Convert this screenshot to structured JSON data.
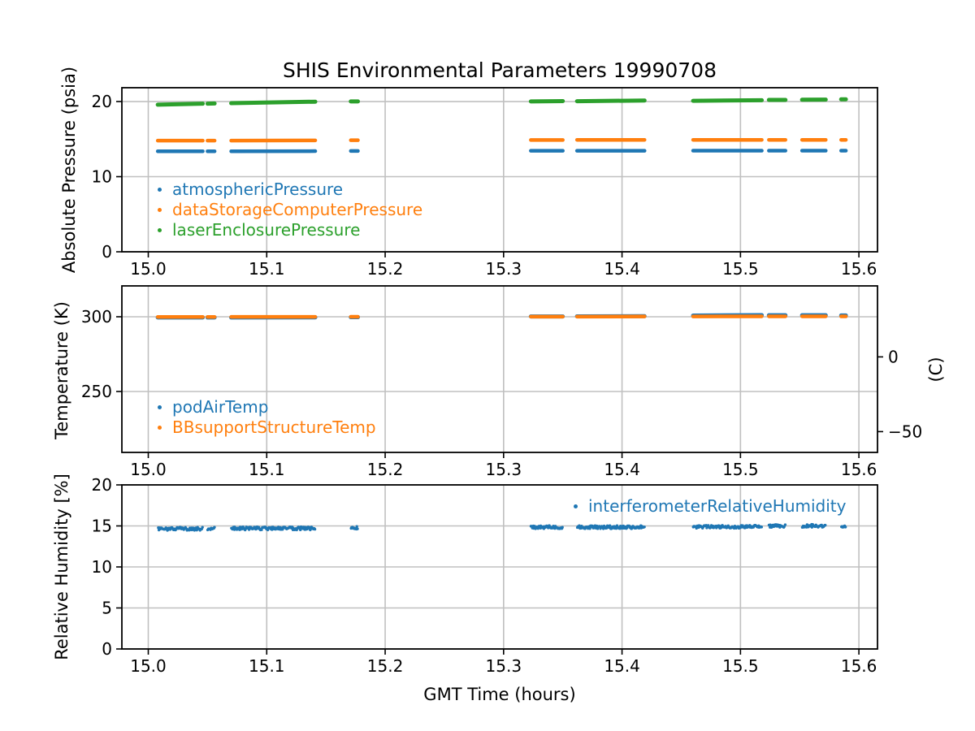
{
  "title": "SHIS Environmental Parameters 19990708",
  "xlabel": "GMT Time (hours)",
  "palette": {
    "blue": "#1f77b4",
    "orange": "#ff7f0e",
    "green": "#2ca02c",
    "grid": "#c0c0c0",
    "spine": "#000000"
  },
  "chart_data": [
    {
      "id": "pressure-plot",
      "type": "scatter",
      "ylabel": "Absolute Pressure (psia)",
      "xlim": [
        14.9777,
        15.6157
      ],
      "ylim": [
        0,
        21.84
      ],
      "xticks": [
        15.0,
        15.1,
        15.2,
        15.3,
        15.4,
        15.5,
        15.6
      ],
      "yticks": [
        0,
        10,
        20
      ],
      "grid": true,
      "legend_position": "lower left",
      "series": [
        {
          "name": "atmosphericPressure",
          "color": "#1f77b4",
          "style": "line",
          "width": 4.5,
          "segments": [
            [
              15.008,
              15.046,
              13.38,
              13.38
            ],
            [
              15.05,
              15.056,
              13.38,
              13.38
            ],
            [
              15.07,
              15.141,
              13.38,
              13.4
            ],
            [
              15.171,
              15.177,
              13.42,
              13.42
            ],
            [
              15.323,
              15.35,
              13.45,
              13.45
            ],
            [
              15.362,
              15.419,
              13.45,
              13.45
            ],
            [
              15.46,
              15.518,
              13.46,
              13.46
            ],
            [
              15.524,
              15.538,
              13.46,
              13.46
            ],
            [
              15.552,
              15.572,
              13.46,
              13.46
            ],
            [
              15.585,
              15.589,
              13.46,
              13.46
            ]
          ]
        },
        {
          "name": "dataStorageComputerPressure",
          "color": "#ff7f0e",
          "style": "line",
          "width": 4.5,
          "segments": [
            [
              15.008,
              15.046,
              14.8,
              14.8
            ],
            [
              15.05,
              15.056,
              14.8,
              14.8
            ],
            [
              15.07,
              15.141,
              14.8,
              14.83
            ],
            [
              15.171,
              15.177,
              14.85,
              14.85
            ],
            [
              15.323,
              15.35,
              14.88,
              14.88
            ],
            [
              15.362,
              15.419,
              14.9,
              14.9
            ],
            [
              15.46,
              15.518,
              14.9,
              14.9
            ],
            [
              15.524,
              15.538,
              14.9,
              14.9
            ],
            [
              15.552,
              15.572,
              14.9,
              14.9
            ],
            [
              15.585,
              15.589,
              14.9,
              14.9
            ]
          ]
        },
        {
          "name": "laserEnclosurePressure",
          "color": "#2ca02c",
          "style": "line",
          "width": 5,
          "segments": [
            [
              15.008,
              15.046,
              19.58,
              19.72
            ],
            [
              15.05,
              15.056,
              19.72,
              19.74
            ],
            [
              15.07,
              15.141,
              19.78,
              19.98
            ],
            [
              15.171,
              15.177,
              20.02,
              20.02
            ],
            [
              15.323,
              15.35,
              20.02,
              20.06
            ],
            [
              15.362,
              15.419,
              20.04,
              20.14
            ],
            [
              15.46,
              15.518,
              20.1,
              20.18
            ],
            [
              15.524,
              15.538,
              20.22,
              20.22
            ],
            [
              15.552,
              15.572,
              20.24,
              20.26
            ],
            [
              15.585,
              15.589,
              20.3,
              20.3
            ]
          ]
        }
      ]
    },
    {
      "id": "temperature-plot",
      "type": "scatter",
      "ylabel": "Temperature (K)",
      "ylabel_right": "(C)",
      "xlim": [
        14.9777,
        15.6157
      ],
      "ylim": [
        209.24,
        320.65
      ],
      "xticks": [
        15.0,
        15.1,
        15.2,
        15.3,
        15.4,
        15.5,
        15.6
      ],
      "yticks": [
        250,
        300
      ],
      "yticks_right": [
        {
          "label": "0",
          "kelvin": 273.15
        },
        {
          "label": "−50",
          "kelvin": 223.15
        }
      ],
      "grid": true,
      "legend_position": "lower left",
      "series": [
        {
          "name": "podAirTemp",
          "color": "#1f77b4",
          "style": "line",
          "width": 5,
          "segments": [
            [
              15.008,
              15.046,
              299.5,
              299.5
            ],
            [
              15.05,
              15.056,
              299.5,
              299.5
            ],
            [
              15.07,
              15.141,
              299.5,
              299.6
            ],
            [
              15.171,
              15.177,
              299.7,
              299.7
            ],
            [
              15.323,
              15.35,
              300.2,
              300.2
            ],
            [
              15.362,
              15.419,
              300.3,
              300.4
            ],
            [
              15.46,
              15.518,
              300.8,
              301.1
            ],
            [
              15.524,
              15.538,
              301.0,
              301.0
            ],
            [
              15.552,
              15.572,
              301.0,
              301.0
            ],
            [
              15.585,
              15.589,
              300.9,
              300.9
            ]
          ]
        },
        {
          "name": "BBsupportStructureTemp",
          "color": "#ff7f0e",
          "style": "line",
          "width": 4.5,
          "segments": [
            [
              15.008,
              15.046,
              299.85,
              299.85
            ],
            [
              15.05,
              15.056,
              299.85,
              299.85
            ],
            [
              15.07,
              15.141,
              299.9,
              299.95
            ],
            [
              15.171,
              15.177,
              300.0,
              300.0
            ],
            [
              15.323,
              15.35,
              300.1,
              300.1
            ],
            [
              15.362,
              15.419,
              300.1,
              300.2
            ],
            [
              15.46,
              15.518,
              300.2,
              300.3
            ],
            [
              15.524,
              15.538,
              300.3,
              300.3
            ],
            [
              15.552,
              15.572,
              300.3,
              300.3
            ],
            [
              15.585,
              15.589,
              300.25,
              300.25
            ]
          ]
        }
      ]
    },
    {
      "id": "humidity-plot",
      "type": "scatter",
      "ylabel": "Relative Humidity [%]",
      "xlim": [
        14.9777,
        15.6157
      ],
      "ylim": [
        0,
        20
      ],
      "xticks": [
        15.0,
        15.1,
        15.2,
        15.3,
        15.4,
        15.5,
        15.6
      ],
      "yticks": [
        0,
        5,
        10,
        15,
        20
      ],
      "grid": true,
      "legend_position": "upper right",
      "series": [
        {
          "name": "interferometerRelativeHumidity",
          "color": "#1f77b4",
          "style": "dots",
          "noise": 0.38,
          "segments": [
            [
              15.008,
              15.046,
              14.65
            ],
            [
              15.05,
              15.056,
              14.65
            ],
            [
              15.07,
              15.141,
              14.7
            ],
            [
              15.171,
              15.177,
              14.75
            ],
            [
              15.323,
              15.35,
              14.85
            ],
            [
              15.362,
              15.419,
              14.85
            ],
            [
              15.46,
              15.518,
              14.9
            ],
            [
              15.524,
              15.538,
              15.0
            ],
            [
              15.552,
              15.572,
              15.0
            ],
            [
              15.585,
              15.589,
              15.0
            ]
          ]
        }
      ]
    }
  ]
}
